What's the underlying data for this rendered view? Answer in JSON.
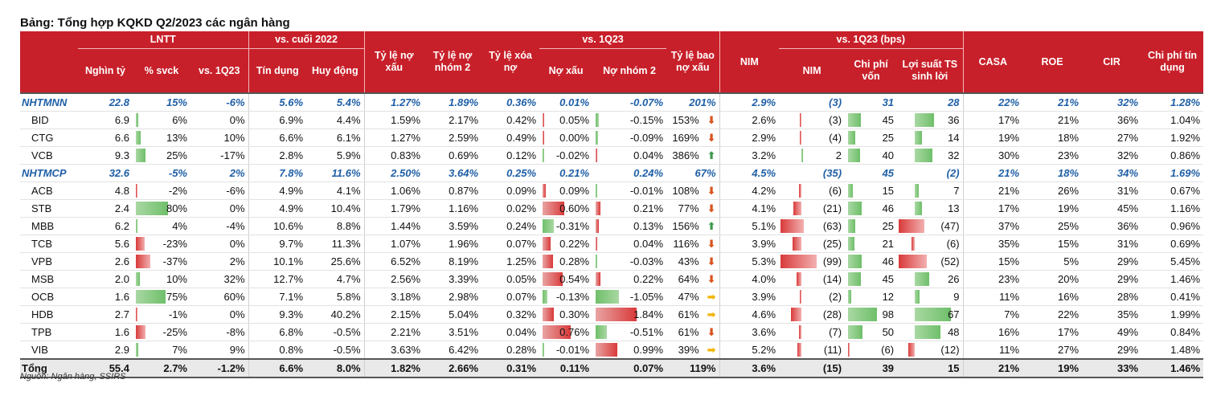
{
  "title": "Bảng: Tổng hợp KQKD Q2/2023 các ngân hàng",
  "source": "Nguồn: Ngân hàng, SSIRS",
  "header": {
    "groups": {
      "lntt": "LNTT",
      "vs_cuoi_2022": "vs. cuối 2022",
      "vs_1q23": "vs. 1Q23",
      "vs_1q23_bps": "vs. 1Q23 (bps)"
    },
    "cols": {
      "nghin_ty": "Nghìn tỷ",
      "svck": "% svck",
      "vs1q23": "vs. 1Q23",
      "tin_dung": "Tín dụng",
      "huy_dong": "Huy động",
      "ty_le_no_xau": "Tỷ lệ nợ xấu",
      "ty_le_no_nhom2": "Tỷ lệ nợ nhóm 2",
      "ty_le_xoa_no": "Tỷ lệ xóa nợ",
      "no_xau": "Nợ xấu",
      "no_nhom2": "Nợ nhóm 2",
      "ty_le_bao_no_xau": "Tỷ lệ bao nợ xấu",
      "nim": "NIM",
      "nim_bps": "NIM",
      "chi_phi_von": "Chi phí vốn",
      "loi_suat_ts": "Lợi suất TS sinh lời",
      "casa": "CASA",
      "roe": "ROE",
      "cir": "CIR",
      "chi_phi_tin_dung": "Chi phí tín dụng"
    }
  },
  "rows": [
    {
      "name": "NHTMNN",
      "lntt": "22.8",
      "svck": "15%",
      "q1": "-6%",
      "td": "5.6%",
      "hd": "5.4%",
      "nx": "1.27%",
      "nn2": "1.89%",
      "xn": "0.36%",
      "dnx": "0.01%",
      "dnn2": "-0.07%",
      "bao": "201%",
      "trend": "",
      "nim": "2.9%",
      "dnim": "(3)",
      "cpv": "31",
      "ls": "28",
      "casa": "22%",
      "roe": "21%",
      "cir": "32%",
      "cptd": "1.28%"
    },
    {
      "name": "BID",
      "lntt": "6.9",
      "svck": "6%",
      "q1": "0%",
      "td": "6.9%",
      "hd": "4.4%",
      "nx": "1.59%",
      "nn2": "2.17%",
      "xn": "0.42%",
      "dnx": "0.05%",
      "dnn2": "-0.15%",
      "bao": "153%",
      "trend": "down",
      "nim": "2.6%",
      "dnim": "(3)",
      "cpv": "45",
      "ls": "36",
      "casa": "17%",
      "roe": "21%",
      "cir": "36%",
      "cptd": "1.04%"
    },
    {
      "name": "CTG",
      "lntt": "6.6",
      "svck": "13%",
      "q1": "10%",
      "td": "6.6%",
      "hd": "6.1%",
      "nx": "1.27%",
      "nn2": "2.59%",
      "xn": "0.49%",
      "dnx": "0.00%",
      "dnn2": "-0.09%",
      "bao": "169%",
      "trend": "down",
      "nim": "2.9%",
      "dnim": "(4)",
      "cpv": "25",
      "ls": "14",
      "casa": "19%",
      "roe": "18%",
      "cir": "27%",
      "cptd": "1.92%"
    },
    {
      "name": "VCB",
      "lntt": "9.3",
      "svck": "25%",
      "q1": "-17%",
      "td": "2.8%",
      "hd": "5.9%",
      "nx": "0.83%",
      "nn2": "0.69%",
      "xn": "0.12%",
      "dnx": "-0.02%",
      "dnn2": "0.04%",
      "bao": "386%",
      "trend": "up",
      "nim": "3.2%",
      "dnim": "2",
      "cpv": "40",
      "ls": "32",
      "casa": "30%",
      "roe": "23%",
      "cir": "32%",
      "cptd": "0.86%"
    },
    {
      "name": "NHTMCP",
      "lntt": "32.6",
      "svck": "-5%",
      "q1": "2%",
      "td": "7.8%",
      "hd": "11.6%",
      "nx": "2.50%",
      "nn2": "3.64%",
      "xn": "0.25%",
      "dnx": "0.21%",
      "dnn2": "0.24%",
      "bao": "67%",
      "trend": "",
      "nim": "4.5%",
      "dnim": "(35)",
      "cpv": "45",
      "ls": "(2)",
      "casa": "21%",
      "roe": "18%",
      "cir": "34%",
      "cptd": "1.69%"
    },
    {
      "name": "ACB",
      "lntt": "4.8",
      "svck": "-2%",
      "q1": "-6%",
      "td": "4.9%",
      "hd": "4.1%",
      "nx": "1.06%",
      "nn2": "0.87%",
      "xn": "0.09%",
      "dnx": "0.09%",
      "dnn2": "-0.01%",
      "bao": "108%",
      "trend": "down",
      "nim": "4.2%",
      "dnim": "(6)",
      "cpv": "15",
      "ls": "7",
      "casa": "21%",
      "roe": "26%",
      "cir": "31%",
      "cptd": "0.67%"
    },
    {
      "name": "STB",
      "lntt": "2.4",
      "svck": "80%",
      "q1": "0%",
      "td": "4.9%",
      "hd": "10.4%",
      "nx": "1.79%",
      "nn2": "1.16%",
      "xn": "0.02%",
      "dnx": "0.60%",
      "dnn2": "0.21%",
      "bao": "77%",
      "trend": "down",
      "nim": "4.1%",
      "dnim": "(21)",
      "cpv": "46",
      "ls": "13",
      "casa": "17%",
      "roe": "19%",
      "cir": "45%",
      "cptd": "1.16%"
    },
    {
      "name": "MBB",
      "lntt": "6.2",
      "svck": "4%",
      "q1": "-4%",
      "td": "10.6%",
      "hd": "8.8%",
      "nx": "1.44%",
      "nn2": "3.59%",
      "xn": "0.24%",
      "dnx": "-0.31%",
      "dnn2": "0.13%",
      "bao": "156%",
      "trend": "up",
      "nim": "5.1%",
      "dnim": "(63)",
      "cpv": "25",
      "ls": "(47)",
      "casa": "37%",
      "roe": "25%",
      "cir": "36%",
      "cptd": "0.96%"
    },
    {
      "name": "TCB",
      "lntt": "5.6",
      "svck": "-23%",
      "q1": "0%",
      "td": "9.7%",
      "hd": "11.3%",
      "nx": "1.07%",
      "nn2": "1.96%",
      "xn": "0.07%",
      "dnx": "0.22%",
      "dnn2": "0.04%",
      "bao": "116%",
      "trend": "down",
      "nim": "3.9%",
      "dnim": "(25)",
      "cpv": "21",
      "ls": "(6)",
      "casa": "35%",
      "roe": "15%",
      "cir": "31%",
      "cptd": "0.69%"
    },
    {
      "name": "VPB",
      "lntt": "2.6",
      "svck": "-37%",
      "q1": "2%",
      "td": "10.1%",
      "hd": "25.6%",
      "nx": "6.52%",
      "nn2": "8.19%",
      "xn": "1.25%",
      "dnx": "0.28%",
      "dnn2": "-0.03%",
      "bao": "43%",
      "trend": "down",
      "nim": "5.3%",
      "dnim": "(99)",
      "cpv": "46",
      "ls": "(52)",
      "casa": "15%",
      "roe": "5%",
      "cir": "29%",
      "cptd": "5.45%"
    },
    {
      "name": "MSB",
      "lntt": "2.0",
      "svck": "10%",
      "q1": "32%",
      "td": "12.7%",
      "hd": "4.7%",
      "nx": "2.56%",
      "nn2": "3.39%",
      "xn": "0.05%",
      "dnx": "0.54%",
      "dnn2": "0.22%",
      "bao": "64%",
      "trend": "down",
      "nim": "4.0%",
      "dnim": "(14)",
      "cpv": "45",
      "ls": "26",
      "casa": "23%",
      "roe": "20%",
      "cir": "29%",
      "cptd": "1.46%"
    },
    {
      "name": "OCB",
      "lntt": "1.6",
      "svck": "75%",
      "q1": "60%",
      "td": "7.1%",
      "hd": "5.8%",
      "nx": "3.18%",
      "nn2": "2.98%",
      "xn": "0.07%",
      "dnx": "-0.13%",
      "dnn2": "-1.05%",
      "bao": "47%",
      "trend": "right",
      "nim": "3.9%",
      "dnim": "(2)",
      "cpv": "12",
      "ls": "9",
      "casa": "11%",
      "roe": "16%",
      "cir": "28%",
      "cptd": "0.41%"
    },
    {
      "name": "HDB",
      "lntt": "2.7",
      "svck": "-1%",
      "q1": "0%",
      "td": "9.3%",
      "hd": "40.2%",
      "nx": "2.15%",
      "nn2": "5.04%",
      "xn": "0.32%",
      "dnx": "0.30%",
      "dnn2": "1.84%",
      "bao": "61%",
      "trend": "right",
      "nim": "4.6%",
      "dnim": "(28)",
      "cpv": "98",
      "ls": "67",
      "casa": "7%",
      "roe": "22%",
      "cir": "35%",
      "cptd": "1.99%"
    },
    {
      "name": "TPB",
      "lntt": "1.6",
      "svck": "-25%",
      "q1": "-8%",
      "td": "6.8%",
      "hd": "-0.5%",
      "nx": "2.21%",
      "nn2": "3.51%",
      "xn": "0.04%",
      "dnx": "0.76%",
      "dnn2": "-0.51%",
      "bao": "61%",
      "trend": "down",
      "nim": "3.6%",
      "dnim": "(7)",
      "cpv": "50",
      "ls": "48",
      "casa": "16%",
      "roe": "17%",
      "cir": "49%",
      "cptd": "0.84%"
    },
    {
      "name": "VIB",
      "lntt": "2.9",
      "svck": "7%",
      "q1": "9%",
      "td": "0.8%",
      "hd": "-0.5%",
      "nx": "3.63%",
      "nn2": "6.42%",
      "xn": "0.28%",
      "dnx": "-0.01%",
      "dnn2": "0.99%",
      "bao": "39%",
      "trend": "right",
      "nim": "5.2%",
      "dnim": "(11)",
      "cpv": "(6)",
      "ls": "(12)",
      "casa": "11%",
      "roe": "27%",
      "cir": "29%",
      "cptd": "1.48%"
    },
    {
      "name": "Tổng",
      "lntt": "55.4",
      "svck": "2.7%",
      "q1": "-1.2%",
      "td": "6.6%",
      "hd": "8.0%",
      "nx": "1.82%",
      "nn2": "2.66%",
      "xn": "0.31%",
      "dnx": "0.11%",
      "dnn2": "0.07%",
      "bao": "119%",
      "trend": "",
      "nim": "3.6%",
      "dnim": "(15)",
      "cpv": "39",
      "ls": "15",
      "casa": "21%",
      "roe": "19%",
      "cir": "33%",
      "cptd": "1.46%"
    }
  ],
  "bars": {
    "svck": [
      null,
      6,
      13,
      25,
      null,
      -2,
      80,
      4,
      -23,
      -37,
      10,
      75,
      -1,
      -25,
      7,
      null
    ],
    "dnx": [
      null,
      0.05,
      0.0,
      -0.02,
      null,
      0.09,
      0.6,
      -0.31,
      0.22,
      0.28,
      0.54,
      -0.13,
      0.3,
      0.76,
      -0.01,
      null
    ],
    "dnn2": [
      null,
      -0.15,
      -0.09,
      0.04,
      null,
      -0.01,
      0.21,
      0.13,
      0.04,
      -0.03,
      0.22,
      -1.05,
      1.84,
      -0.51,
      0.99,
      null
    ],
    "dnim": [
      null,
      -3,
      -4,
      2,
      null,
      -6,
      -21,
      -63,
      -25,
      -99,
      -14,
      -2,
      -28,
      -7,
      -11,
      null
    ],
    "cpv": [
      null,
      45,
      25,
      40,
      null,
      15,
      46,
      25,
      21,
      46,
      45,
      12,
      98,
      50,
      -6,
      null
    ],
    "ls": [
      null,
      36,
      14,
      32,
      null,
      7,
      13,
      -47,
      -6,
      -52,
      26,
      9,
      67,
      48,
      -12,
      null
    ]
  },
  "colors": {
    "header_bg": "#c8202a",
    "group_text": "#1f5fa6",
    "pos_bar": "#6fbf6a",
    "neg_bar": "#d93a3a"
  },
  "icons": {
    "down": "arrow-down-icon",
    "up": "arrow-up-icon",
    "right": "arrow-right-icon"
  }
}
